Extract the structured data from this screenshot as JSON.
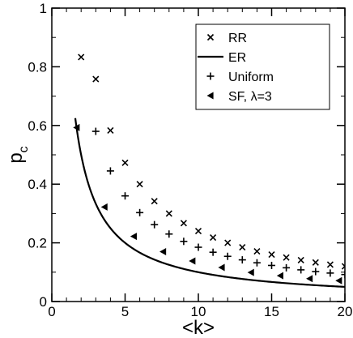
{
  "chart_data": {
    "type": "scatter",
    "xlabel": "<k>",
    "ylabel": "p",
    "ylabel_subscript": "c",
    "xlim": [
      0,
      20
    ],
    "ylim": [
      0,
      1
    ],
    "x_ticks": [
      0,
      5,
      10,
      15,
      20
    ],
    "y_ticks": [
      0,
      0.2,
      0.4,
      0.6,
      0.8,
      1
    ],
    "x_tick_labels": [
      "0",
      "5",
      "10",
      "15",
      "20"
    ],
    "y_tick_labels": [
      "0",
      "0.2",
      "0.4",
      "0.6",
      "0.8",
      "1"
    ],
    "grid": false,
    "legend_position": "top-right",
    "series": [
      {
        "name": "RR",
        "marker": "x",
        "points": [
          [
            2,
            0.833
          ],
          [
            3,
            0.758
          ],
          [
            4,
            0.583
          ],
          [
            5,
            0.473
          ],
          [
            6,
            0.4
          ],
          [
            7,
            0.342
          ],
          [
            8,
            0.3
          ],
          [
            9,
            0.267
          ],
          [
            10,
            0.24
          ],
          [
            11,
            0.218
          ],
          [
            12,
            0.2
          ],
          [
            13,
            0.185
          ],
          [
            14,
            0.171
          ],
          [
            15,
            0.16
          ],
          [
            16,
            0.15
          ],
          [
            17,
            0.141
          ],
          [
            18,
            0.133
          ],
          [
            19,
            0.126
          ],
          [
            20,
            0.12
          ]
        ]
      },
      {
        "name": "ER",
        "marker": "line",
        "function": "1/<k>",
        "x_range": [
          1.6,
          20
        ]
      },
      {
        "name": "Uniform",
        "marker": "+",
        "points": [
          [
            3,
            0.58
          ],
          [
            4,
            0.445
          ],
          [
            5,
            0.36
          ],
          [
            6,
            0.303
          ],
          [
            7,
            0.262
          ],
          [
            8,
            0.23
          ],
          [
            9,
            0.205
          ],
          [
            10,
            0.185
          ],
          [
            11,
            0.168
          ],
          [
            12,
            0.154
          ],
          [
            13,
            0.142
          ],
          [
            14,
            0.132
          ],
          [
            15,
            0.123
          ],
          [
            16,
            0.115
          ],
          [
            17,
            0.108
          ],
          [
            18,
            0.102
          ],
          [
            19,
            0.097
          ],
          [
            20,
            0.092
          ]
        ]
      },
      {
        "name": "SF, λ=3",
        "marker": "triangle-left",
        "points": [
          [
            1.7,
            0.593
          ],
          [
            3.6,
            0.322
          ],
          [
            5.6,
            0.222
          ],
          [
            7.6,
            0.17
          ],
          [
            9.6,
            0.138
          ],
          [
            11.6,
            0.116
          ],
          [
            13.6,
            0.099
          ],
          [
            15.6,
            0.088
          ],
          [
            17.6,
            0.078
          ],
          [
            19.6,
            0.071
          ]
        ]
      }
    ]
  }
}
